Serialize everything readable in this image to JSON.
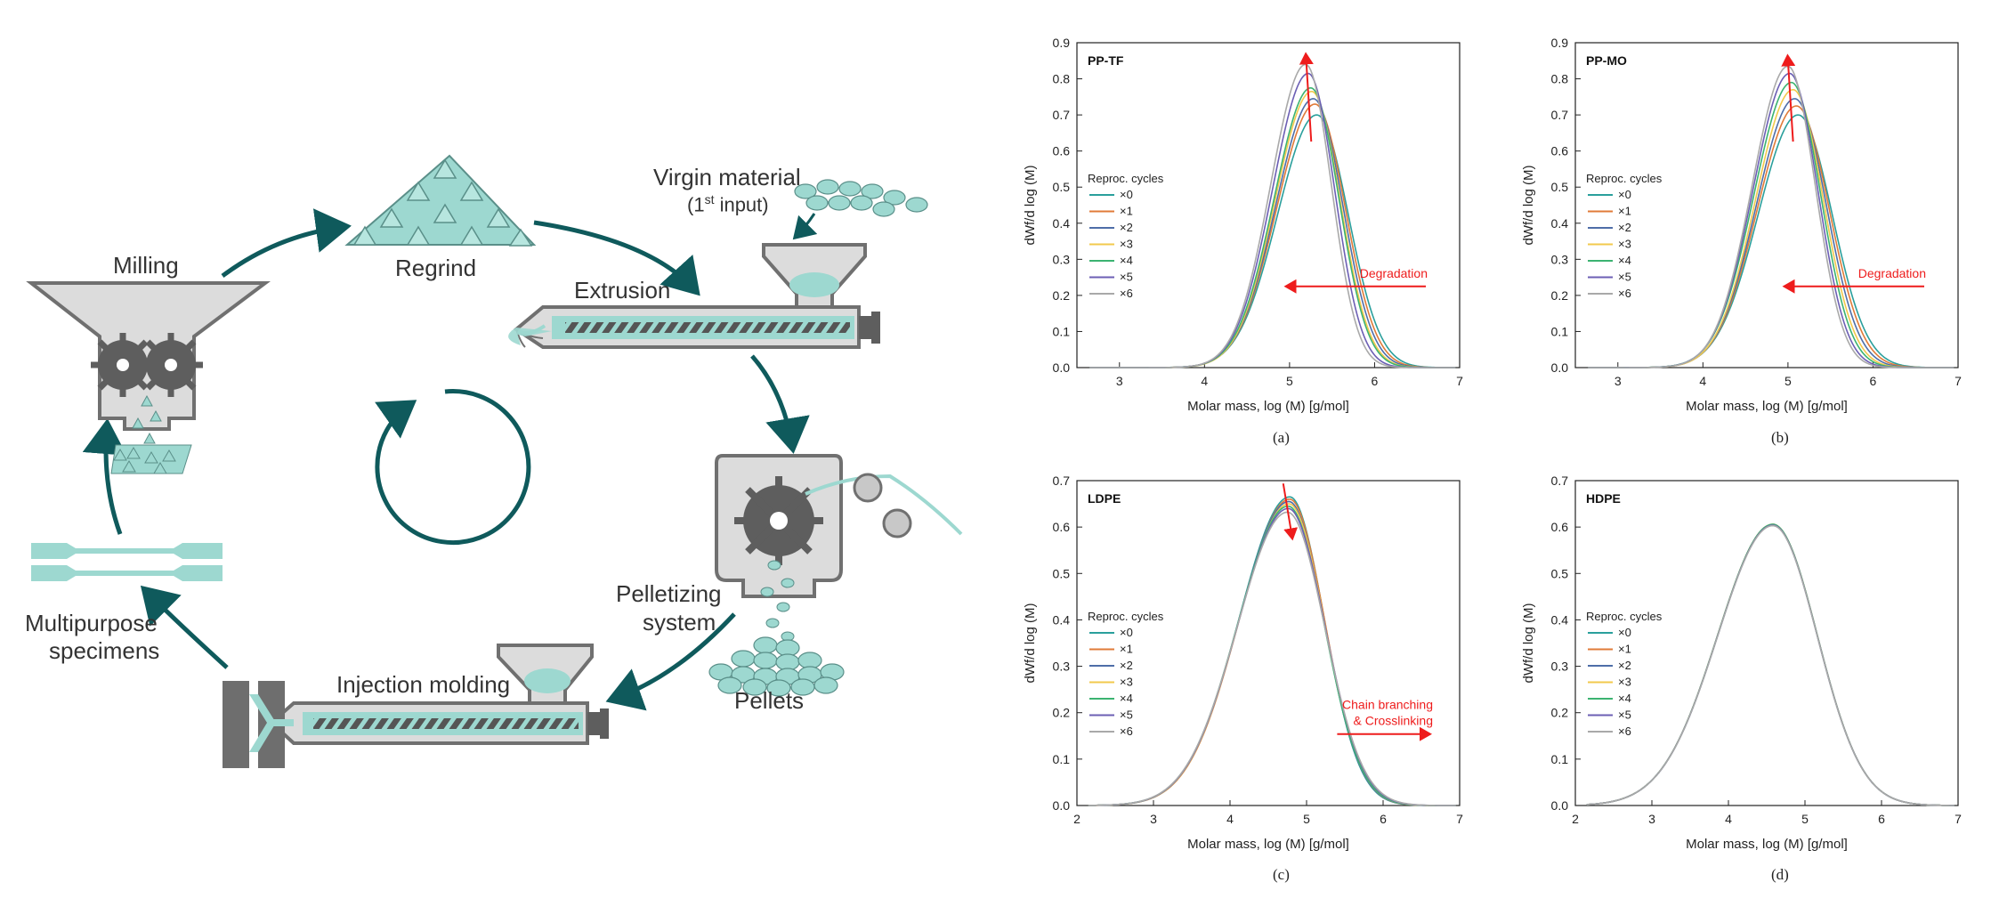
{
  "diagram": {
    "labels": {
      "milling": "Milling",
      "regrind": "Regrind",
      "virgin_line1": "Virgin material",
      "virgin_line2_pre": "(1",
      "virgin_sup": "st",
      "virgin_line2_post": " input)",
      "extrusion": "Extrusion",
      "pelletizing_line1": "Pelletizing",
      "pelletizing_line2": "system",
      "pellets": "Pellets",
      "injection": "Injection molding",
      "multipurpose_line1": "Multipurpose",
      "multipurpose_line2": "specimens"
    }
  },
  "colors": {
    "teal": "#9dd8d0",
    "dark_teal": "#0f5a5c",
    "gray": "#6e6e6e",
    "light_gray": "#d9d9d9",
    "red": "#ee1c1c"
  },
  "legend_title": "Reproc. cycles",
  "chart_data": [
    {
      "type": "line",
      "panel": "PP-TF",
      "caption": "(a)",
      "xlabel": "Molar mass, log (M) [g/mol]",
      "ylabel": "dWf/d log (M)",
      "xlim": [
        2.5,
        7
      ],
      "ylim": [
        0,
        0.9
      ],
      "xticks": [
        "3",
        "4",
        "5",
        "6",
        "7"
      ],
      "yticks": [
        "0.0",
        "0.1",
        "0.2",
        "0.3",
        "0.4",
        "0.5",
        "0.6",
        "0.7",
        "0.8",
        "0.9"
      ],
      "annotation": {
        "text": "Degradation",
        "arrow": "left"
      },
      "peak_arrow": "up",
      "series": [
        {
          "name": "×0",
          "color": "#2a9f9c",
          "peak_x": 5.32,
          "peak_y": 0.7,
          "sl": 0.46,
          "sr": 0.37
        },
        {
          "name": "×1",
          "color": "#e07b39",
          "peak_x": 5.3,
          "peak_y": 0.73,
          "sl": 0.45,
          "sr": 0.355
        },
        {
          "name": "×2",
          "color": "#4e6ea8",
          "peak_x": 5.28,
          "peak_y": 0.745,
          "sl": 0.44,
          "sr": 0.345
        },
        {
          "name": "×3",
          "color": "#f2c94c",
          "peak_x": 5.26,
          "peak_y": 0.765,
          "sl": 0.43,
          "sr": 0.335
        },
        {
          "name": "×4",
          "color": "#3cb371",
          "peak_x": 5.25,
          "peak_y": 0.775,
          "sl": 0.43,
          "sr": 0.33
        },
        {
          "name": "×5",
          "color": "#6c5fb4",
          "peak_x": 5.22,
          "peak_y": 0.815,
          "sl": 0.42,
          "sr": 0.31
        },
        {
          "name": "×6",
          "color": "#a9a9a9",
          "peak_x": 5.19,
          "peak_y": 0.84,
          "sl": 0.41,
          "sr": 0.3
        }
      ]
    },
    {
      "type": "line",
      "panel": "PP-MO",
      "caption": "(b)",
      "xlabel": "Molar mass, log (M) [g/mol]",
      "ylabel": "dWf/d log (M)",
      "xlim": [
        2.5,
        7
      ],
      "ylim": [
        0,
        0.9
      ],
      "xticks": [
        "3",
        "4",
        "5",
        "6",
        "7"
      ],
      "yticks": [
        "0.0",
        "0.1",
        "0.2",
        "0.3",
        "0.4",
        "0.5",
        "0.6",
        "0.7",
        "0.8",
        "0.9"
      ],
      "annotation": {
        "text": "Degradation",
        "arrow": "left"
      },
      "peak_arrow": "up",
      "series": [
        {
          "name": "×0",
          "color": "#2a9f9c",
          "peak_x": 5.12,
          "peak_y": 0.7,
          "sl": 0.47,
          "sr": 0.4
        },
        {
          "name": "×1",
          "color": "#e07b39",
          "peak_x": 5.1,
          "peak_y": 0.725,
          "sl": 0.46,
          "sr": 0.385
        },
        {
          "name": "×2",
          "color": "#4e6ea8",
          "peak_x": 5.08,
          "peak_y": 0.745,
          "sl": 0.45,
          "sr": 0.37
        },
        {
          "name": "×3",
          "color": "#f2c94c",
          "peak_x": 5.06,
          "peak_y": 0.77,
          "sl": 0.44,
          "sr": 0.355
        },
        {
          "name": "×4",
          "color": "#3cb371",
          "peak_x": 5.04,
          "peak_y": 0.79,
          "sl": 0.44,
          "sr": 0.345
        },
        {
          "name": "×5",
          "color": "#6c5fb4",
          "peak_x": 5.02,
          "peak_y": 0.815,
          "sl": 0.43,
          "sr": 0.33
        },
        {
          "name": "×6",
          "color": "#a9a9a9",
          "peak_x": 5.0,
          "peak_y": 0.835,
          "sl": 0.42,
          "sr": 0.32
        }
      ]
    },
    {
      "type": "line",
      "panel": "LDPE",
      "caption": "(c)",
      "xlabel": "Molar mass, log (M) [g/mol]",
      "ylabel": "dWf/d log (M)",
      "xlim": [
        2,
        7
      ],
      "ylim": [
        0,
        0.7
      ],
      "xticks": [
        "2",
        "3",
        "4",
        "5",
        "6",
        "7"
      ],
      "yticks": [
        "0.0",
        "0.1",
        "0.2",
        "0.3",
        "0.4",
        "0.5",
        "0.6",
        "0.7"
      ],
      "annotation": {
        "text": "Chain branching & Crosslinking",
        "line1": "Chain branching",
        "line2": "& Crosslinking",
        "arrow": "right"
      },
      "peak_arrow": "down",
      "series": [
        {
          "name": "×0",
          "color": "#2a9f9c",
          "peak_x": 4.78,
          "peak_y": 0.665,
          "sl": 0.66,
          "sr": 0.45
        },
        {
          "name": "×1",
          "color": "#e07b39",
          "peak_x": 4.78,
          "peak_y": 0.66,
          "sl": 0.66,
          "sr": 0.455
        },
        {
          "name": "×2",
          "color": "#4e6ea8",
          "peak_x": 4.77,
          "peak_y": 0.655,
          "sl": 0.66,
          "sr": 0.46
        },
        {
          "name": "×3",
          "color": "#f2c94c",
          "peak_x": 4.77,
          "peak_y": 0.65,
          "sl": 0.66,
          "sr": 0.465
        },
        {
          "name": "×4",
          "color": "#3cb371",
          "peak_x": 4.76,
          "peak_y": 0.645,
          "sl": 0.66,
          "sr": 0.47
        },
        {
          "name": "×5",
          "color": "#6c5fb4",
          "peak_x": 4.76,
          "peak_y": 0.64,
          "sl": 0.66,
          "sr": 0.48
        },
        {
          "name": "×6",
          "color": "#a9a9a9",
          "peak_x": 4.75,
          "peak_y": 0.632,
          "sl": 0.66,
          "sr": 0.49
        }
      ]
    },
    {
      "type": "line",
      "panel": "HDPE",
      "caption": "(d)",
      "xlabel": "Molar mass, log (M) [g/mol]",
      "ylabel": "dWf/d log (M)",
      "xlim": [
        2,
        7
      ],
      "ylim": [
        0,
        0.7
      ],
      "xticks": [
        "2",
        "3",
        "4",
        "5",
        "6",
        "7"
      ],
      "yticks": [
        "0.0",
        "0.1",
        "0.2",
        "0.3",
        "0.4",
        "0.5",
        "0.6",
        "0.7"
      ],
      "series": [
        {
          "name": "×0",
          "color": "#2a9f9c",
          "peak_x": 4.58,
          "peak_y": 0.605,
          "sl": 0.72,
          "sr": 0.58
        },
        {
          "name": "×1",
          "color": "#e07b39",
          "peak_x": 4.58,
          "peak_y": 0.606,
          "sl": 0.72,
          "sr": 0.58
        },
        {
          "name": "×2",
          "color": "#4e6ea8",
          "peak_x": 4.58,
          "peak_y": 0.604,
          "sl": 0.72,
          "sr": 0.58
        },
        {
          "name": "×3",
          "color": "#f2c94c",
          "peak_x": 4.58,
          "peak_y": 0.605,
          "sl": 0.72,
          "sr": 0.58
        },
        {
          "name": "×4",
          "color": "#3cb371",
          "peak_x": 4.58,
          "peak_y": 0.606,
          "sl": 0.72,
          "sr": 0.58
        },
        {
          "name": "×5",
          "color": "#6c5fb4",
          "peak_x": 4.58,
          "peak_y": 0.604,
          "sl": 0.72,
          "sr": 0.58
        },
        {
          "name": "×6",
          "color": "#a9a9a9",
          "peak_x": 4.58,
          "peak_y": 0.603,
          "sl": 0.72,
          "sr": 0.58
        }
      ]
    }
  ]
}
